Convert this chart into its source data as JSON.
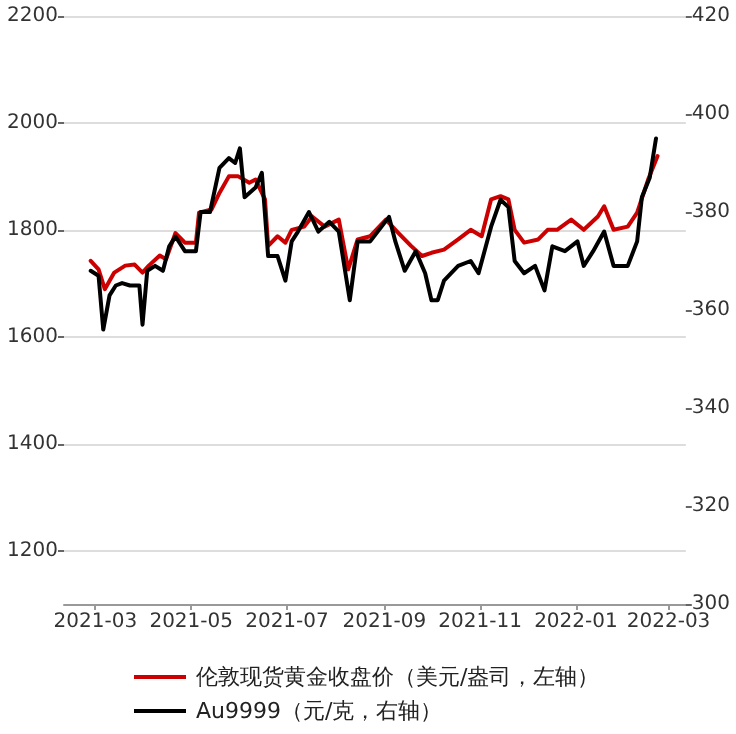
{
  "chart_data": {
    "type": "line",
    "xlim": [
      "2021-02-09",
      "2022-03-12"
    ],
    "xticks": [
      "2021-03",
      "2021-05",
      "2021-07",
      "2021-09",
      "2021-11",
      "2022-01",
      "2022-03"
    ],
    "ylim": [
      1100,
      2200
    ],
    "yticks": [
      1200,
      1400,
      1600,
      1800,
      2000,
      2200
    ],
    "y2lim": [
      300,
      420
    ],
    "y2ticks": [
      300,
      320,
      340,
      360,
      380,
      400,
      420
    ],
    "grid": "y",
    "legend": "bottom",
    "line_style": "solid",
    "series": [
      {
        "name": "伦敦现货黄金收盘价（美元/盎司，左轴）",
        "color": "#cc0000",
        "x": [
          "2021-02-26",
          "2021-03-03",
          "2021-03-07",
          "2021-03-13",
          "2021-03-20",
          "2021-03-26",
          "2021-03-31",
          "2021-04-04",
          "2021-04-11",
          "2021-04-15",
          "2021-04-21",
          "2021-04-27",
          "2021-05-04",
          "2021-05-06",
          "2021-05-14",
          "2021-05-19",
          "2021-05-25",
          "2021-05-31",
          "2021-06-07",
          "2021-06-11",
          "2021-06-17",
          "2021-06-19",
          "2021-06-25",
          "2021-06-30",
          "2021-07-04",
          "2021-07-12",
          "2021-07-17",
          "2021-07-25",
          "2021-08-03",
          "2021-08-09",
          "2021-08-15",
          "2021-08-23",
          "2021-09-02",
          "2021-09-10",
          "2021-09-18",
          "2021-09-25",
          "2021-10-01",
          "2021-10-09",
          "2021-10-18",
          "2021-10-26",
          "2021-11-02",
          "2021-11-08",
          "2021-11-14",
          "2021-11-19",
          "2021-11-23",
          "2021-11-29",
          "2021-12-08",
          "2021-12-14",
          "2021-12-20",
          "2021-12-29",
          "2022-01-06",
          "2022-01-15",
          "2022-01-19",
          "2022-01-25",
          "2022-02-03",
          "2022-02-09",
          "2022-02-16",
          "2022-02-22"
        ],
        "values": [
          1742,
          1726,
          1689,
          1720,
          1733,
          1735,
          1720,
          1733,
          1752,
          1745,
          1794,
          1776,
          1776,
          1832,
          1838,
          1869,
          1900,
          1900,
          1888,
          1894,
          1857,
          1770,
          1788,
          1776,
          1800,
          1806,
          1825,
          1806,
          1819,
          1726,
          1782,
          1788,
          1819,
          1794,
          1770,
          1751,
          1757,
          1763,
          1782,
          1800,
          1788,
          1857,
          1863,
          1857,
          1800,
          1776,
          1782,
          1800,
          1800,
          1819,
          1800,
          1825,
          1844,
          1800,
          1806,
          1832,
          1894,
          1938
        ]
      },
      {
        "name": "Au9999（元/克，右轴）",
        "color": "#000000",
        "axis": "y2",
        "x": [
          "2021-02-26",
          "2021-03-03",
          "2021-03-06",
          "2021-03-10",
          "2021-03-14",
          "2021-03-18",
          "2021-03-23",
          "2021-03-29",
          "2021-03-31",
          "2021-04-03",
          "2021-04-08",
          "2021-04-13",
          "2021-04-17",
          "2021-04-21",
          "2021-04-27",
          "2021-05-04",
          "2021-05-07",
          "2021-05-13",
          "2021-05-19",
          "2021-05-25",
          "2021-05-29",
          "2021-06-01",
          "2021-06-04",
          "2021-06-11",
          "2021-06-15",
          "2021-06-19",
          "2021-06-25",
          "2021-06-30",
          "2021-07-04",
          "2021-07-08",
          "2021-07-15",
          "2021-07-21",
          "2021-07-28",
          "2021-08-03",
          "2021-08-10",
          "2021-08-15",
          "2021-08-23",
          "2021-09-04",
          "2021-09-08",
          "2021-09-14",
          "2021-09-21",
          "2021-09-27",
          "2021-10-01",
          "2021-10-05",
          "2021-10-09",
          "2021-10-18",
          "2021-10-26",
          "2021-10-31",
          "2021-11-08",
          "2021-11-14",
          "2021-11-19",
          "2021-11-23",
          "2021-11-29",
          "2021-12-06",
          "2021-12-12",
          "2021-12-17",
          "2021-12-25",
          "2022-01-02",
          "2022-01-06",
          "2022-01-12",
          "2022-01-19",
          "2022-01-25",
          "2022-02-03",
          "2022-02-09",
          "2022-02-12",
          "2022-02-17",
          "2022-02-21"
        ],
        "values": [
          368,
          367,
          356,
          363,
          365,
          365.5,
          365,
          365,
          357,
          368,
          369,
          368,
          373,
          375,
          372,
          372,
          380,
          380,
          389,
          391,
          390,
          393,
          383,
          385,
          388,
          371,
          371,
          366,
          374,
          376,
          380,
          376,
          378,
          376,
          362,
          374,
          374,
          379,
          374,
          368,
          372,
          367.5,
          362,
          362,
          366,
          369,
          370,
          367.5,
          377,
          382.5,
          381,
          370,
          367.5,
          369,
          364,
          373,
          372,
          374,
          369,
          372,
          376,
          369,
          369,
          374,
          383,
          387,
          395
        ]
      }
    ]
  }
}
